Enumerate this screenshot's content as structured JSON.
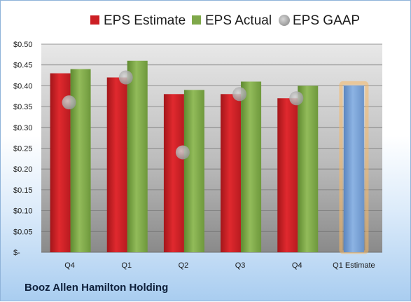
{
  "chart_data": {
    "type": "bar",
    "categories": [
      "Q4",
      "Q1",
      "Q2",
      "Q3",
      "Q4",
      "Q1 Estimate"
    ],
    "series": [
      {
        "name": "EPS Estimate",
        "color": "#cc1f24",
        "values": [
          0.43,
          0.42,
          0.38,
          0.38,
          0.37,
          null
        ]
      },
      {
        "name": "EPS Actual",
        "color": "#7fa84a",
        "values": [
          0.44,
          0.46,
          0.39,
          0.41,
          0.4,
          null
        ]
      },
      {
        "name": "EPS GAAP",
        "color": "#b0b0b0",
        "values": [
          0.36,
          0.42,
          0.24,
          0.38,
          0.37,
          null
        ]
      }
    ],
    "next_estimate": {
      "value": 0.4,
      "color": "#7aa3d6",
      "glow": "#f5b866"
    },
    "y_ticks": [
      "$-",
      "$0.05",
      "$0.10",
      "$0.15",
      "$0.20",
      "$0.25",
      "$0.30",
      "$0.35",
      "$0.40",
      "$0.45",
      "$0.50"
    ],
    "ylim": [
      0,
      0.5
    ],
    "grid": true,
    "legend_position": "top"
  },
  "company_name": "Booz Allen Hamilton Holding"
}
